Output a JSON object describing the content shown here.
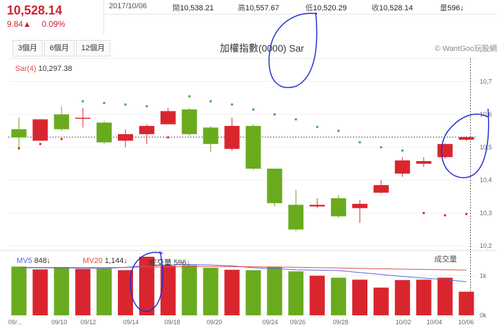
{
  "quote": {
    "price": "10,528.14",
    "change": "9.84▲",
    "change_pct": "0.09%"
  },
  "info": {
    "date": "2017/10/06",
    "open_label": "開",
    "open": "10,538.21",
    "high_label": "高",
    "high": "10,557.67",
    "low_label": "低",
    "low": "10,520.29",
    "close_label": "收",
    "close": "10,528.14",
    "vol_label": "量",
    "vol": "596↓"
  },
  "periods": [
    "3個月",
    "6個月",
    "12個月"
  ],
  "title": "加權指數(0000) Sar",
  "brand": "© WantGoo玩股網",
  "indicator": {
    "sar_label": "Sar(4)",
    "sar_value": "10,297.38"
  },
  "volume_panel": {
    "mv5_label": "MV5",
    "mv5_value": "848↓",
    "mv20_label": "MV20",
    "mv20_value": "1,144↓",
    "vol_label": "成交量",
    "vol_value": "596↓",
    "title": "成交量"
  },
  "colors": {
    "up": "#d9262e",
    "down": "#6aab1e",
    "sar": "#33aa44",
    "mv5": "#5566dd",
    "mv20": "#e04b4b"
  },
  "chart_data": [
    {
      "type": "candlestick",
      "title": "加權指數(0000) Sar",
      "ylim": [
        10190,
        10770
      ],
      "y_ticks": [
        "10,7",
        "10,6",
        "10,5",
        "10,4",
        "10,3",
        "10,2"
      ],
      "x_tick_labels": [
        "09/...",
        "09/10",
        "09/12",
        "09/14",
        "09/18",
        "09/20",
        "09/24",
        "09/26",
        "09/28",
        "10/02",
        "10/04",
        "10/06"
      ],
      "candles": [
        {
          "o": 10555,
          "c": 10530,
          "h": 10590,
          "l": 10495
        },
        {
          "o": 10520,
          "c": 10585,
          "h": 10585,
          "l": 10520
        },
        {
          "o": 10600,
          "c": 10555,
          "h": 10625,
          "l": 10550
        },
        {
          "o": 10588,
          "c": 10590,
          "h": 10620,
          "l": 10560
        },
        {
          "o": 10575,
          "c": 10515,
          "h": 10580,
          "l": 10510
        },
        {
          "o": 10520,
          "c": 10540,
          "h": 10555,
          "l": 10500
        },
        {
          "o": 10540,
          "c": 10565,
          "h": 10570,
          "l": 10510
        },
        {
          "o": 10570,
          "c": 10610,
          "h": 10620,
          "l": 10570
        },
        {
          "o": 10615,
          "c": 10540,
          "h": 10620,
          "l": 10535
        },
        {
          "o": 10560,
          "c": 10510,
          "h": 10565,
          "l": 10485
        },
        {
          "o": 10495,
          "c": 10565,
          "h": 10590,
          "l": 10490
        },
        {
          "o": 10565,
          "c": 10435,
          "h": 10570,
          "l": 10430
        },
        {
          "o": 10435,
          "c": 10330,
          "h": 10435,
          "l": 10320
        },
        {
          "o": 10325,
          "c": 10250,
          "h": 10370,
          "l": 10245
        },
        {
          "o": 10320,
          "c": 10325,
          "h": 10345,
          "l": 10315
        },
        {
          "o": 10345,
          "c": 10290,
          "h": 10355,
          "l": 10285
        },
        {
          "o": 10315,
          "c": 10328,
          "h": 10340,
          "l": 10270
        },
        {
          "o": 10362,
          "c": 10385,
          "h": 10400,
          "l": 10360
        },
        {
          "o": 10420,
          "c": 10460,
          "h": 10470,
          "l": 10410
        },
        {
          "o": 10450,
          "c": 10458,
          "h": 10470,
          "l": 10440
        },
        {
          "o": 10470,
          "c": 10510,
          "h": 10512,
          "l": 10465
        },
        {
          "o": 10523,
          "c": 10531,
          "h": 10534,
          "l": 10520
        }
      ],
      "sar": [
        10497,
        10510,
        10525,
        10640,
        10635,
        10630,
        10625,
        10530,
        10655,
        10640,
        10630,
        10615,
        10600,
        10585,
        10562,
        10550,
        10515,
        10500,
        10490,
        10300,
        10293,
        10297
      ],
      "crosshair_value": "10,5"
    },
    {
      "type": "bar",
      "title": "成交量",
      "ylim": [
        0,
        1600
      ],
      "y_ticks": [
        "1k",
        "0k"
      ],
      "volumes": [
        1230,
        1160,
        1220,
        1170,
        1180,
        1140,
        1480,
        1250,
        1260,
        1200,
        1150,
        1140,
        1230,
        1110,
        1000,
        950,
        900,
        700,
        890,
        900,
        950,
        596
      ],
      "mv5": [
        1200,
        1200,
        1195,
        1190,
        1185,
        1210,
        1260,
        1270,
        1280,
        1270,
        1250,
        1200,
        1180,
        1150,
        1140,
        1130,
        1080,
        1030,
        980,
        940,
        900,
        848
      ],
      "mv20": [
        1210,
        1208,
        1206,
        1205,
        1205,
        1210,
        1220,
        1225,
        1230,
        1232,
        1230,
        1225,
        1220,
        1212,
        1205,
        1195,
        1185,
        1175,
        1165,
        1158,
        1150,
        1144
      ]
    }
  ]
}
